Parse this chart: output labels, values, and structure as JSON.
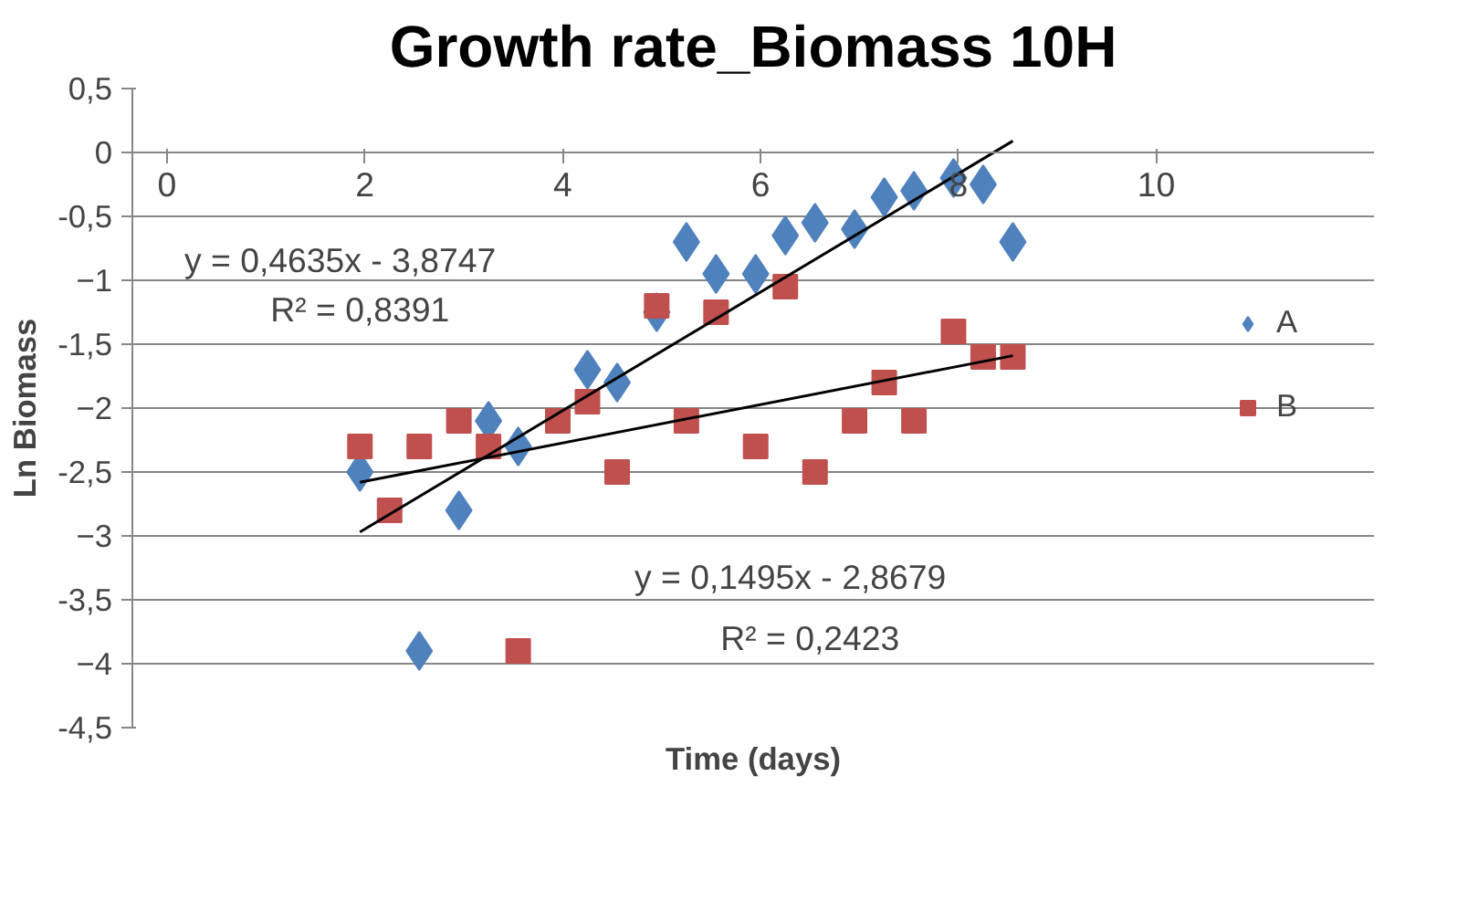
{
  "chart_data": {
    "type": "scatter",
    "title": "Growth rate_Biomass 10H",
    "xlabel": "Time (days)",
    "ylabel": "Ln Biomass",
    "xlim": [
      0,
      10
    ],
    "xticks": [
      0,
      2,
      4,
      6,
      8,
      10
    ],
    "ylim": [
      -4.5,
      0.5
    ],
    "yticks": [
      {
        "value": -4.5,
        "label": "-4,5"
      },
      -4,
      {
        "value": -3.5,
        "label": "-3,5"
      },
      -3,
      {
        "value": -2.5,
        "label": "-2,5"
      },
      -2,
      {
        "value": -1.5,
        "label": "-1,5"
      },
      -1,
      {
        "value": -0.5,
        "label": "-0,5"
      },
      0,
      {
        "value": 0.5,
        "label": "0,5"
      }
    ],
    "grid": "y",
    "legend": "right",
    "series": [
      {
        "name": "A",
        "type": "scatter",
        "marker": "diamond",
        "color": "#4f81bd",
        "x": [
          1.95,
          2.55,
          2.95,
          3.25,
          3.55,
          4.25,
          4.55,
          4.95,
          5.25,
          5.55,
          5.95,
          6.25,
          6.55,
          6.95,
          7.25,
          7.55,
          7.95,
          8.25,
          8.55
        ],
        "values": [
          -2.5,
          -3.9,
          -2.8,
          -2.1,
          -2.3,
          -1.7,
          -1.8,
          -1.25,
          -0.7,
          -0.95,
          -0.95,
          -0.65,
          -0.55,
          -0.6,
          -0.35,
          -0.3,
          -0.2,
          -0.25,
          -0.7
        ]
      },
      {
        "name": "B",
        "type": "scatter",
        "marker": "square",
        "color": "#c0504d",
        "x": [
          1.95,
          2.25,
          2.55,
          2.95,
          3.25,
          3.55,
          3.95,
          4.25,
          4.55,
          4.95,
          5.25,
          5.55,
          5.95,
          6.25,
          6.55,
          6.95,
          7.25,
          7.55,
          7.95,
          8.25,
          8.55
        ],
        "values": [
          -2.3,
          -2.8,
          -2.3,
          -2.1,
          -2.3,
          -3.9,
          -2.1,
          -1.95,
          -2.5,
          -1.2,
          -2.1,
          -1.25,
          -2.3,
          -1.05,
          -2.5,
          -2.1,
          -1.8,
          -2.1,
          -1.4,
          -1.6,
          -1.6
        ]
      },
      {
        "type": "line",
        "color": "#000000",
        "x": [
          1.95,
          8.55
        ],
        "values": [
          -2.97,
          0.09
        ]
      },
      {
        "type": "line",
        "color": "#000000",
        "x": [
          1.95,
          8.55
        ],
        "values": [
          -2.58,
          -1.59
        ]
      }
    ],
    "annotations": [
      "y = 0,4635x - 3,8747",
      "R² = 0,8391",
      "y = 0,1495x - 2,8679",
      "R² = 0,2423"
    ]
  }
}
